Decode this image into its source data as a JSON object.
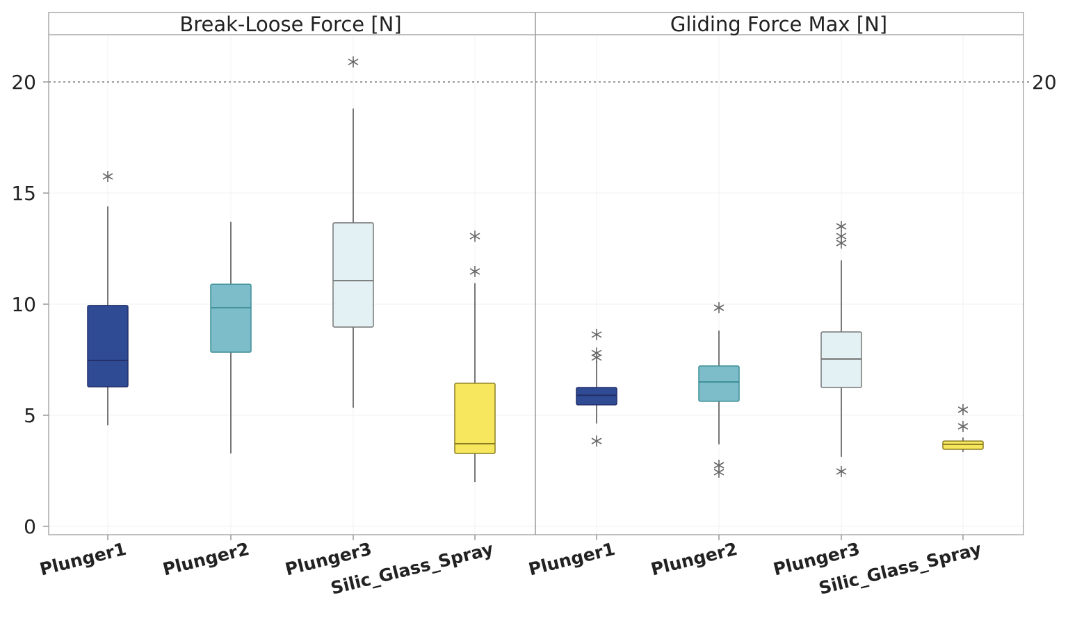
{
  "chart_data": {
    "type": "boxplot",
    "y_ticks": [
      0,
      5,
      10,
      15,
      20
    ],
    "right_axis_tick": 20,
    "ylim": [
      -0.4,
      21.9
    ],
    "reference_line": 20,
    "grid": true,
    "categories": [
      "Plunger1",
      "Plunger2",
      "Plunger3",
      "Silic_Glass_Spray"
    ],
    "colors": [
      "#2f4b94",
      "#7dbdc9",
      "#e3f1f4",
      "#f7e75f"
    ],
    "panels": [
      {
        "title": "Break-Loose Force [N]",
        "boxes": [
          {
            "category": "Plunger1",
            "whisker_low": 4.55,
            "q1": 6.28,
            "median": 7.47,
            "q3": 9.94,
            "whisker_high": 14.4,
            "outliers": [
              15.75
            ]
          },
          {
            "category": "Plunger2",
            "whisker_low": 3.28,
            "q1": 7.84,
            "median": 9.84,
            "q3": 10.9,
            "whisker_high": 13.7,
            "outliers": []
          },
          {
            "category": "Plunger3",
            "whisker_low": 5.34,
            "q1": 8.97,
            "median": 11.06,
            "q3": 13.66,
            "whisker_high": 18.8,
            "outliers": [
              20.9
            ]
          },
          {
            "category": "Silic_Glass_Spray",
            "whisker_low": 2.0,
            "q1": 3.28,
            "median": 3.72,
            "q3": 6.44,
            "whisker_high": 10.94,
            "outliers": [
              11.47,
              13.06
            ]
          }
        ]
      },
      {
        "title": "Gliding Force Max [N]",
        "boxes": [
          {
            "category": "Plunger1",
            "whisker_low": 4.63,
            "q1": 5.47,
            "median": 5.9,
            "q3": 6.25,
            "whisker_high": 7.45,
            "outliers": [
              3.84,
              7.6,
              7.8,
              8.63
            ]
          },
          {
            "category": "Plunger2",
            "whisker_low": 3.69,
            "q1": 5.63,
            "median": 6.5,
            "q3": 7.22,
            "whisker_high": 8.81,
            "outliers": [
              2.44,
              2.75,
              9.84
            ]
          },
          {
            "category": "Plunger3",
            "whisker_low": 3.13,
            "q1": 6.25,
            "median": 7.53,
            "q3": 8.75,
            "whisker_high": 11.97,
            "outliers": [
              2.47,
              12.75,
              13.06,
              13.5
            ]
          },
          {
            "category": "Silic_Glass_Spray",
            "whisker_low": 3.35,
            "q1": 3.47,
            "median": 3.69,
            "q3": 3.84,
            "whisker_high": 4.0,
            "outliers": [
              4.5,
              5.25
            ]
          }
        ]
      }
    ]
  }
}
